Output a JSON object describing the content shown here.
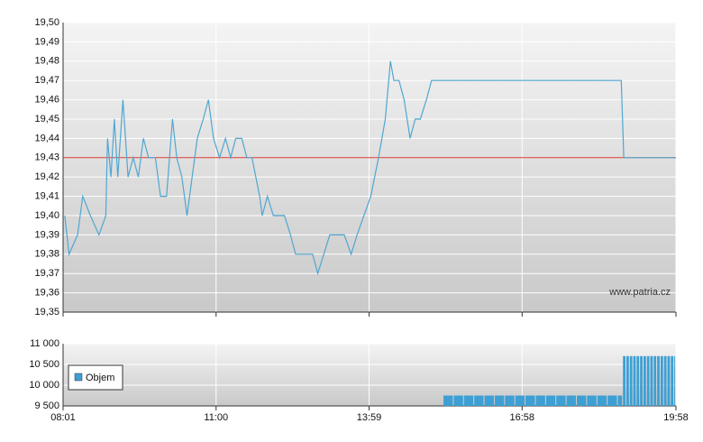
{
  "chart_data": [
    {
      "type": "line",
      "color": "#4fa7d2",
      "reference_line": 19.43,
      "reference_color": "#d9352a",
      "annotation": "www.patria.cz",
      "grid": true,
      "x": [
        483,
        488,
        498,
        504,
        513,
        523,
        531,
        533,
        537,
        541,
        545,
        551,
        557,
        563,
        569,
        575,
        581,
        589,
        595,
        602,
        609,
        614,
        620,
        626,
        632,
        638,
        645,
        651,
        657,
        664,
        671,
        677,
        683,
        690,
        696,
        702,
        711,
        714,
        720,
        727,
        734,
        740,
        747,
        753,
        760,
        767,
        773,
        779,
        786,
        793,
        801,
        810,
        818,
        825,
        833,
        841,
        850,
        858,
        864,
        868,
        874,
        880,
        887,
        893,
        899,
        906,
        912,
        918,
        926,
        1134,
        1137,
        1198
      ],
      "values": [
        19.4,
        19.38,
        19.39,
        19.41,
        19.4,
        19.39,
        19.4,
        19.44,
        19.42,
        19.45,
        19.42,
        19.46,
        19.42,
        19.43,
        19.42,
        19.44,
        19.43,
        19.43,
        19.41,
        19.41,
        19.45,
        19.43,
        19.42,
        19.4,
        19.42,
        19.44,
        19.45,
        19.46,
        19.44,
        19.43,
        19.44,
        19.43,
        19.44,
        19.44,
        19.43,
        19.43,
        19.41,
        19.4,
        19.41,
        19.4,
        19.4,
        19.4,
        19.39,
        19.38,
        19.38,
        19.38,
        19.38,
        19.37,
        19.38,
        19.39,
        19.39,
        19.39,
        19.38,
        19.39,
        19.4,
        19.41,
        19.43,
        19.45,
        19.48,
        19.47,
        19.47,
        19.46,
        19.44,
        19.45,
        19.45,
        19.46,
        19.47,
        19.47,
        19.47,
        19.47,
        19.43,
        19.43
      ],
      "xlim": [
        481,
        1198
      ],
      "ylim": [
        19.35,
        19.5
      ],
      "yticks": [
        {
          "value": 19.35,
          "label": "19,35"
        },
        {
          "value": 19.36,
          "label": "19,36"
        },
        {
          "value": 19.37,
          "label": "19,37"
        },
        {
          "value": 19.38,
          "label": "19,38"
        },
        {
          "value": 19.39,
          "label": "19,39"
        },
        {
          "value": 19.4,
          "label": "19,40"
        },
        {
          "value": 19.41,
          "label": "19,41"
        },
        {
          "value": 19.42,
          "label": "19,42"
        },
        {
          "value": 19.43,
          "label": "19,43"
        },
        {
          "value": 19.44,
          "label": "19,44"
        },
        {
          "value": 19.45,
          "label": "19,45"
        },
        {
          "value": 19.46,
          "label": "19,46"
        },
        {
          "value": 19.47,
          "label": "19,47"
        },
        {
          "value": 19.48,
          "label": "19,48"
        },
        {
          "value": 19.49,
          "label": "19,49"
        },
        {
          "value": 19.5,
          "label": "19,50"
        }
      ],
      "xticks": [
        481,
        660,
        839,
        1018,
        1198
      ]
    },
    {
      "type": "bar",
      "legend": "top-left",
      "grid": true,
      "x": [
        926,
        938,
        950,
        962,
        974,
        986,
        998,
        1010,
        1022,
        1034,
        1046,
        1058,
        1070,
        1082,
        1094,
        1106,
        1118,
        1130,
        1136,
        1140,
        1144,
        1148,
        1152,
        1156,
        1160,
        1164,
        1168,
        1172,
        1176,
        1180,
        1184,
        1188,
        1192,
        1196
      ],
      "series": [
        {
          "name": "Objem",
          "color": "#3d9fd3",
          "values": [
            9750,
            9750,
            9750,
            9750,
            9750,
            9750,
            9750,
            9750,
            9750,
            9750,
            9750,
            9750,
            9750,
            9750,
            9750,
            9750,
            9750,
            9750,
            10700,
            10700,
            10700,
            10700,
            10700,
            10700,
            10700,
            10700,
            10700,
            10700,
            10700,
            10700,
            10700,
            10700,
            10700,
            10700
          ]
        }
      ],
      "xlim": [
        481,
        1198
      ],
      "ylim": [
        9500,
        11000
      ],
      "yticks": [
        {
          "value": 9500,
          "label": "9 500"
        },
        {
          "value": 10000,
          "label": "10 000"
        },
        {
          "value": 10500,
          "label": "10 500"
        },
        {
          "value": 11000,
          "label": "11 000"
        }
      ],
      "xticks": [
        {
          "value": 481,
          "label": "08:01"
        },
        {
          "value": 660,
          "label": "11:00"
        },
        {
          "value": 839,
          "label": "13:59"
        },
        {
          "value": 1018,
          "label": "16:58"
        },
        {
          "value": 1198,
          "label": "19:58"
        }
      ]
    }
  ]
}
